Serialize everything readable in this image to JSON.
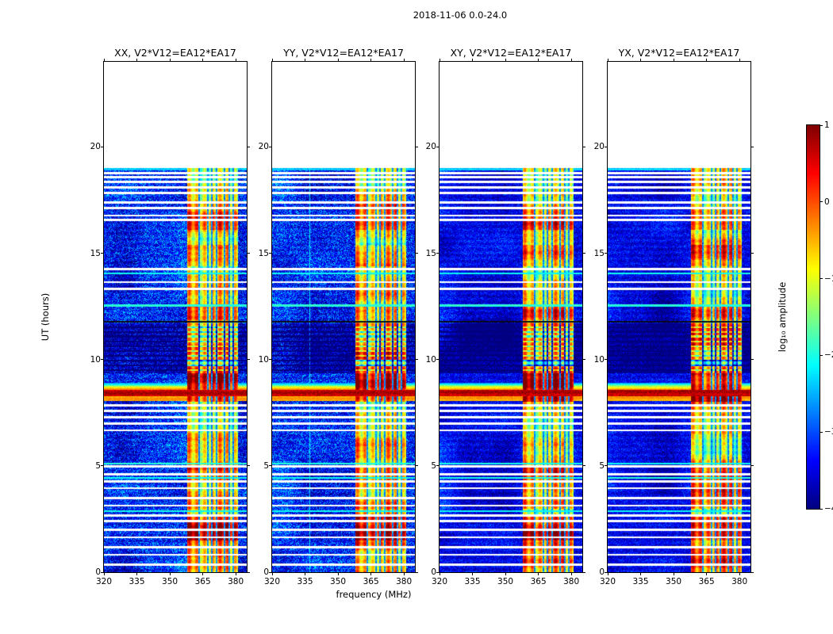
{
  "figure": {
    "title": "2018-11-06 0.0-24.0",
    "xlabel": "frequency (MHz)",
    "ylabel": "UT (hours)",
    "colorbar_label": "log₁₀ amplitude"
  },
  "panels": [
    {
      "key": "XX",
      "title": "XX, V2*V12=EA12*EA17",
      "seed": 11,
      "speckle": 1.0,
      "extra_vline_mhz": null
    },
    {
      "key": "YY",
      "title": "YY, V2*V12=EA12*EA17",
      "seed": 23,
      "speckle": 1.0,
      "extra_vline_mhz": 337
    },
    {
      "key": "XY",
      "title": "XY, V2*V12=EA12*EA17",
      "seed": 37,
      "speckle": 0.6,
      "extra_vline_mhz": null
    },
    {
      "key": "YX",
      "title": "YX, V2*V12=EA12*EA17",
      "seed": 51,
      "speckle": 0.6,
      "extra_vline_mhz": null
    }
  ],
  "axes": {
    "x_ticks": [
      320,
      335,
      350,
      365,
      380
    ],
    "y_ticks": [
      0,
      5,
      10,
      15,
      20
    ]
  },
  "colorbar": {
    "tick_labels": [
      "1",
      "0",
      "−1",
      "−2",
      "−3",
      "−4"
    ],
    "tick_values": [
      1,
      0,
      -1,
      -2,
      -3,
      -4
    ],
    "colormap": "jet"
  },
  "chart_data": {
    "type": "heatmap",
    "title": "2018-11-06 0.0-24.0",
    "xlabel": "frequency (MHz)",
    "ylabel": "UT (hours)",
    "value_label": "log10 amplitude",
    "colormap": "jet",
    "x_range": [
      320,
      385
    ],
    "y_range": [
      0,
      24
    ],
    "value_range": [
      -4,
      1
    ],
    "colorbar_ticks": [
      1,
      0,
      -1,
      -2,
      -3,
      -4
    ],
    "panels": [
      "XX, V2*V12=EA12*EA17",
      "YY, V2*V12=EA12*EA17",
      "XY, V2*V12=EA12*EA17",
      "YX, V2*V12=EA12*EA17"
    ],
    "data_extent_hours": [
      0,
      19.0
    ],
    "background_level": -3.4,
    "rfi_band": {
      "mhz": [
        358,
        381
      ],
      "typical_level": -1.0,
      "dark_channel_mhz": [
        363.3,
        367.3,
        369.1,
        371.3,
        374.9,
        377.1,
        378.9
      ]
    },
    "bright_intervals_hours": [
      [
        1.5,
        2.65
      ],
      [
        8.0,
        9.7
      ],
      [
        10.0,
        11.72
      ]
    ],
    "warm_intervals_hours": [
      [
        0.0,
        1.5
      ],
      [
        3.0,
        5.0
      ],
      [
        11.85,
        12.6
      ],
      [
        14.4,
        15.4
      ],
      [
        16.1,
        17.4
      ]
    ],
    "flare": {
      "hours": [
        8.05,
        8.9
      ],
      "core_hours": [
        8.28,
        8.56
      ],
      "peak_level": 1.0
    },
    "black_row_hour": 11.78,
    "dark_region_hours": [
      9.35,
      11.72
    ],
    "dark_row_hours": [
      9.5,
      9.73,
      9.95,
      10.18,
      10.4,
      10.63,
      10.85,
      11.08,
      11.3,
      11.52
    ],
    "white_row_hours": [
      0.37,
      0.82,
      1.19,
      1.64,
      2.01,
      2.39,
      2.68,
      3.13,
      3.47,
      3.95,
      4.25,
      4.62,
      4.99,
      6.67,
      6.97,
      7.27,
      7.57,
      7.83,
      13.34,
      13.64,
      14.24,
      16.55,
      16.77,
      17.14,
      17.37,
      17.85,
      18.08,
      18.34,
      18.56,
      18.78
    ],
    "cyan_row_hours": [
      2.87,
      4.43,
      5.11,
      12.55,
      14.05
    ]
  }
}
